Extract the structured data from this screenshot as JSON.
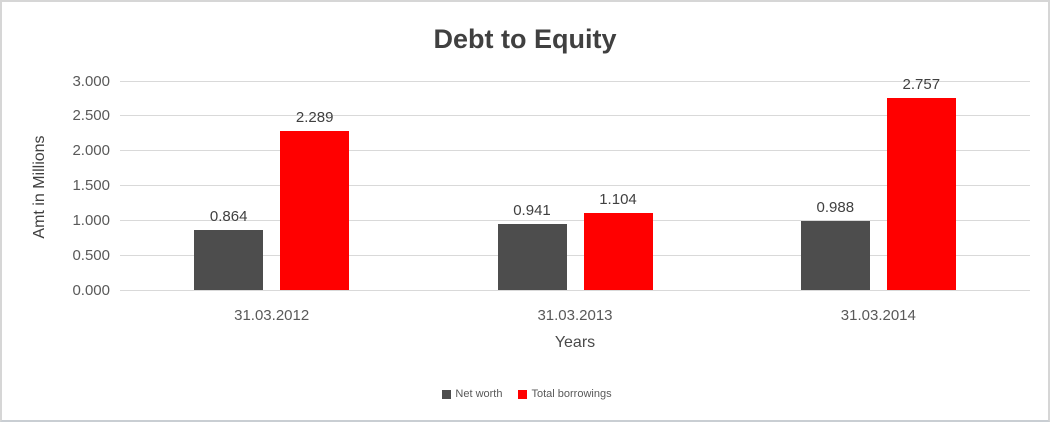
{
  "chart_data": {
    "type": "bar",
    "title": "Debt to Equity",
    "xlabel": "Years",
    "ylabel": "Amt in Millions",
    "categories": [
      "31.03.2012",
      "31.03.2013",
      "31.03.2014"
    ],
    "series": [
      {
        "name": "Net worth",
        "color": "#4d4d4d",
        "values": [
          0.864,
          0.941,
          0.988
        ],
        "labels": [
          "0.864",
          "0.941",
          "0.988"
        ]
      },
      {
        "name": "Total borrowings",
        "color": "#ff0000",
        "values": [
          2.289,
          1.104,
          2.757
        ],
        "labels": [
          "2.289",
          "1.104",
          "2.757"
        ]
      }
    ],
    "ylim": [
      0,
      3
    ],
    "yticks": [
      {
        "value": 0.0,
        "label": "0.000"
      },
      {
        "value": 0.5,
        "label": "0.500"
      },
      {
        "value": 1.0,
        "label": "1.000"
      },
      {
        "value": 1.5,
        "label": "1.500"
      },
      {
        "value": 2.0,
        "label": "2.000"
      },
      {
        "value": 2.5,
        "label": "2.500"
      },
      {
        "value": 3.0,
        "label": "3.000"
      }
    ],
    "grid": "horizontal",
    "legend_position": "bottom-center",
    "colors": {
      "grid": "#d9d9d9",
      "axis_text": "#595959",
      "value_label_text": "#404040",
      "title_text": "#404040"
    }
  }
}
